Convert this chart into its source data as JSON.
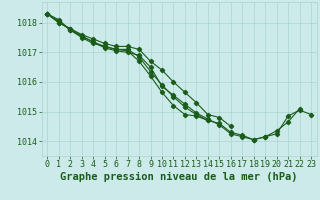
{
  "title": "Graphe pression niveau de la mer (hPa)",
  "line1": [
    1018.3,
    1018.1,
    1017.75,
    1017.55,
    1017.35,
    1017.15,
    1017.05,
    1017.0,
    1016.9,
    1016.5,
    1015.85,
    1015.55,
    1015.25,
    1014.95,
    1014.75,
    1014.55,
    1014.25,
    1014.15,
    1014.05,
    1014.15,
    1014.25,
    1014.85,
    1015.05,
    1014.9
  ],
  "line2": [
    1018.3,
    1018.05,
    1017.75,
    1017.5,
    1017.3,
    1017.2,
    1017.1,
    1017.1,
    1016.85,
    1016.35,
    1015.9,
    1015.5,
    1015.15,
    1014.9,
    1014.7,
    1014.6,
    1014.3,
    1014.2,
    1014.05,
    1014.15,
    1014.35,
    1014.65,
    1015.1,
    null
  ],
  "line3": [
    1018.3,
    1018.0,
    1017.8,
    1017.6,
    1017.45,
    1017.3,
    1017.2,
    1017.2,
    1017.1,
    1016.7,
    1016.4,
    1016.0,
    1015.65,
    1015.3,
    1014.9,
    1014.8,
    1014.5,
    null,
    null,
    null,
    null,
    null,
    null,
    null
  ],
  "line4": [
    1018.3,
    1018.0,
    1017.8,
    1017.55,
    1017.35,
    1017.2,
    1017.1,
    1017.05,
    1016.7,
    1016.2,
    1015.65,
    1015.2,
    1014.9,
    1014.85,
    1014.7,
    null,
    null,
    null,
    null,
    null,
    null,
    null,
    null,
    null
  ],
  "bg_color": "#cceaea",
  "grid_color": "#aad4d4",
  "line_color": "#1a5c1a",
  "marker": "D",
  "marker_size": 2.2,
  "line_width": 0.8,
  "ylim": [
    1013.5,
    1018.7
  ],
  "yticks": [
    1014,
    1015,
    1016,
    1017,
    1018
  ],
  "xticks": [
    0,
    1,
    2,
    3,
    4,
    5,
    6,
    7,
    8,
    9,
    10,
    11,
    12,
    13,
    14,
    15,
    16,
    17,
    18,
    19,
    20,
    21,
    22,
    23
  ],
  "title_fontsize": 7.5,
  "tick_fontsize": 6.0,
  "title_color": "#1a5c1a",
  "tick_color": "#1a5c1a"
}
